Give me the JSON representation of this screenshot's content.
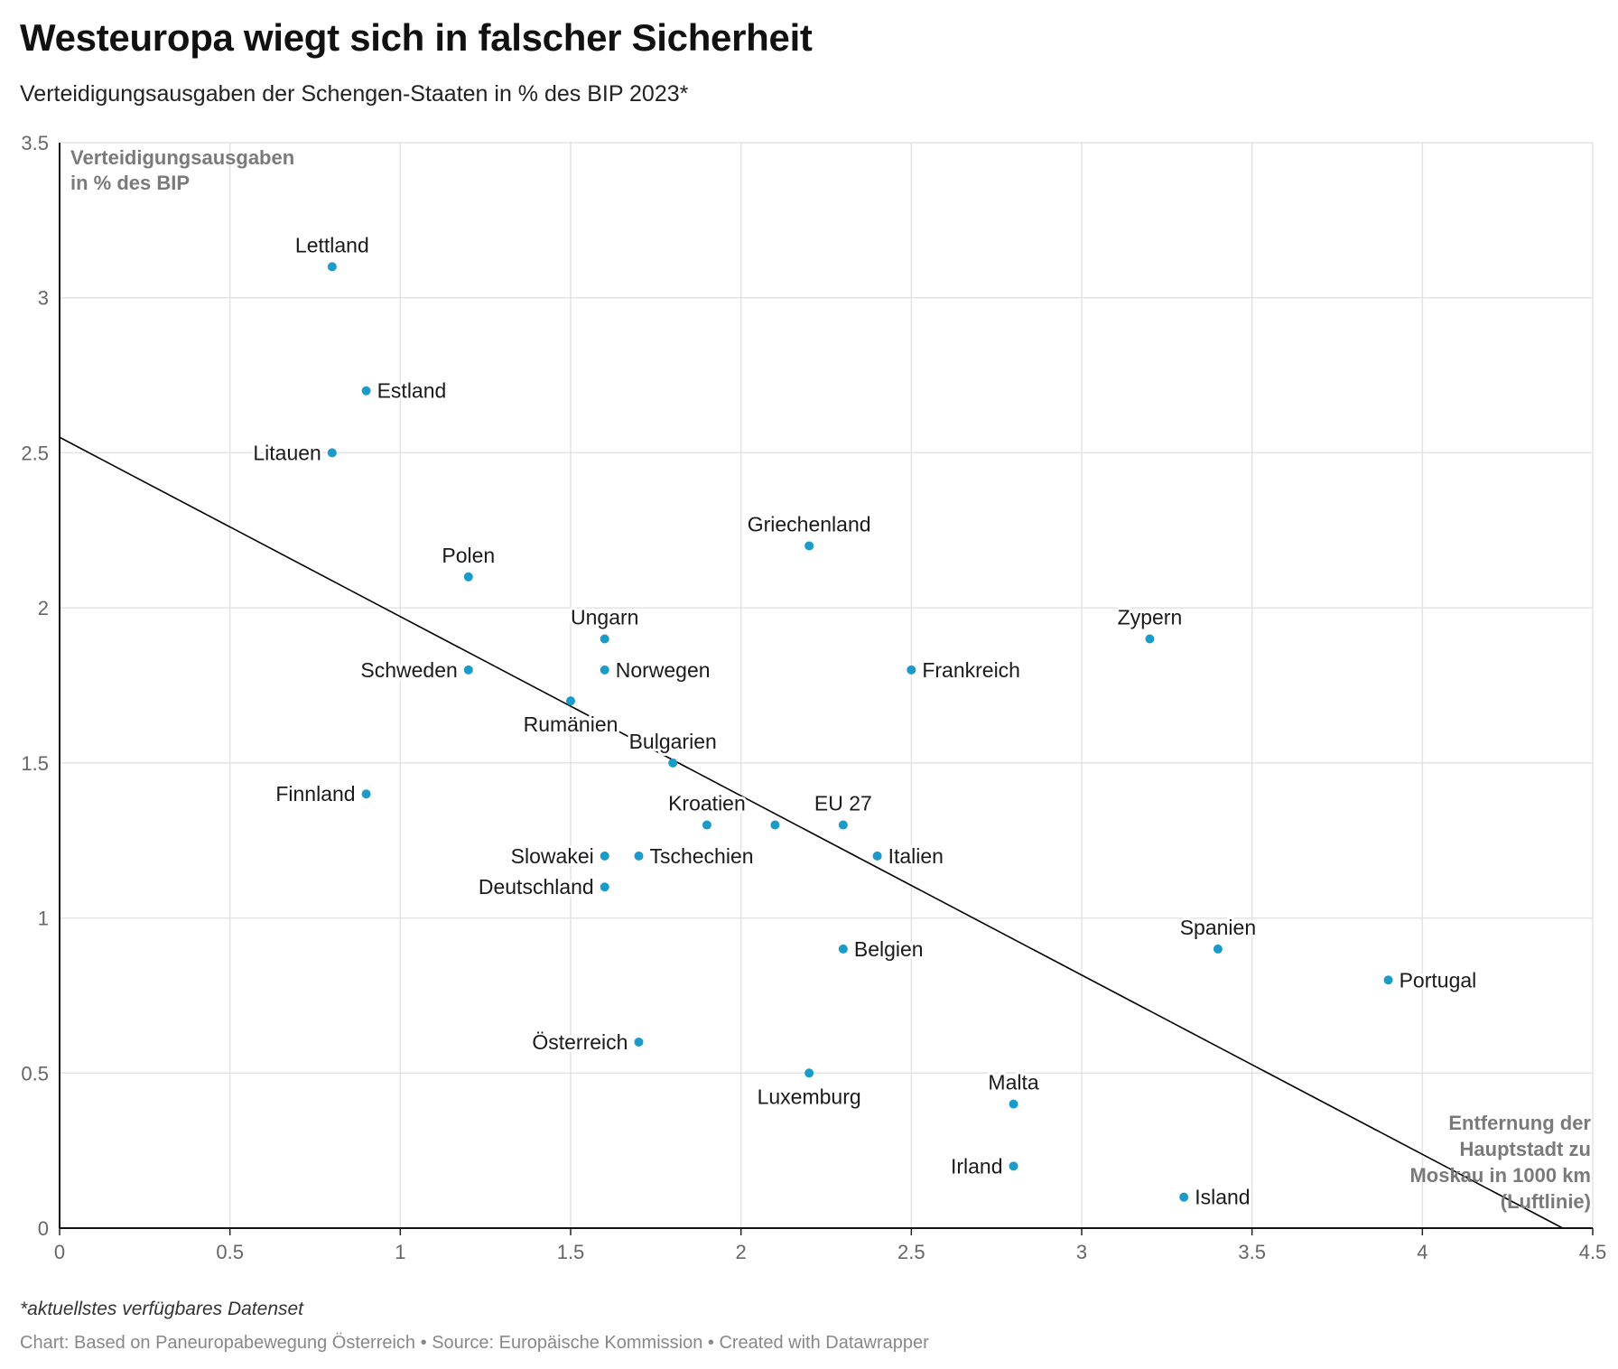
{
  "header": {
    "title": "Westeuropa wiegt sich in falscher Sicherheit",
    "subtitle": "Verteidigungsausgaben der Schengen-Staaten in % des BIP 2023*"
  },
  "footer": {
    "note": "*aktuellstes verfügbares Datenset",
    "credit_chart": "Chart: Based on Paneuropabewegung Österreich",
    "credit_source": "Source: Europäische Kommission",
    "credit_tool": "Created with Datawrapper",
    "separator": " • "
  },
  "colors": {
    "point": "#1a9bc9",
    "trend": "#000000",
    "grid": "#e3e3e3",
    "axis_label": "#7a7a7a"
  },
  "chart_data": {
    "type": "scatter",
    "title": "Westeuropa wiegt sich in falscher Sicherheit",
    "ylabel_lines": [
      "Verteidigungsausgaben",
      "in % des BIP"
    ],
    "xlabel_lines": [
      "Entfernung der",
      "Hauptstadt zu",
      "Moskau in 1000 km",
      "(Luftlinie)"
    ],
    "xlim": [
      0,
      4.5
    ],
    "ylim": [
      0,
      3.5
    ],
    "xticks": [
      0,
      0.5,
      1,
      1.5,
      2,
      2.5,
      3,
      3.5,
      4,
      4.5
    ],
    "xtick_labels": [
      "0",
      "0.5",
      "1",
      "1.5",
      "2",
      "2.5",
      "3",
      "3.5",
      "4",
      "4.5"
    ],
    "yticks": [
      0,
      0.5,
      1,
      1.5,
      2,
      2.5,
      3,
      3.5
    ],
    "ytick_labels": [
      "0",
      "0.5",
      "1",
      "1.5",
      "2",
      "2.5",
      "3",
      "3.5"
    ],
    "grid": true,
    "trendline": {
      "intercept": 2.55,
      "slope": -0.578
    },
    "points": [
      {
        "label": "Lettland",
        "x": 0.8,
        "y": 3.1,
        "pos": "top"
      },
      {
        "label": "Estland",
        "x": 0.9,
        "y": 2.7,
        "pos": "right"
      },
      {
        "label": "Litauen",
        "x": 0.8,
        "y": 2.5,
        "pos": "left"
      },
      {
        "label": "Polen",
        "x": 1.2,
        "y": 2.1,
        "pos": "top"
      },
      {
        "label": "Griechenland",
        "x": 2.2,
        "y": 2.2,
        "pos": "top"
      },
      {
        "label": "Ungarn",
        "x": 1.6,
        "y": 1.9,
        "pos": "top"
      },
      {
        "label": "Zypern",
        "x": 3.2,
        "y": 1.9,
        "pos": "top"
      },
      {
        "label": "Schweden",
        "x": 1.2,
        "y": 1.8,
        "pos": "left"
      },
      {
        "label": "Norwegen",
        "x": 1.6,
        "y": 1.8,
        "pos": "right"
      },
      {
        "label": "Frankreich",
        "x": 2.5,
        "y": 1.8,
        "pos": "right"
      },
      {
        "label": "Rumänien",
        "x": 1.5,
        "y": 1.7,
        "pos": "bottom"
      },
      {
        "label": "Bulgarien",
        "x": 1.8,
        "y": 1.5,
        "pos": "top"
      },
      {
        "label": "Finnland",
        "x": 0.9,
        "y": 1.4,
        "pos": "left"
      },
      {
        "label": "Kroatien",
        "x": 1.9,
        "y": 1.3,
        "pos": "top"
      },
      {
        "label": "",
        "x": 2.1,
        "y": 1.3,
        "pos": "none"
      },
      {
        "label": "EU 27",
        "x": 2.3,
        "y": 1.3,
        "pos": "top"
      },
      {
        "label": "Slowakei",
        "x": 1.6,
        "y": 1.2,
        "pos": "left"
      },
      {
        "label": "Tschechien",
        "x": 1.7,
        "y": 1.2,
        "pos": "right"
      },
      {
        "label": "Italien",
        "x": 2.4,
        "y": 1.2,
        "pos": "right"
      },
      {
        "label": "Deutschland",
        "x": 1.6,
        "y": 1.1,
        "pos": "left"
      },
      {
        "label": "Belgien",
        "x": 2.3,
        "y": 0.9,
        "pos": "right"
      },
      {
        "label": "Spanien",
        "x": 3.4,
        "y": 0.9,
        "pos": "top"
      },
      {
        "label": "Portugal",
        "x": 3.9,
        "y": 0.8,
        "pos": "right"
      },
      {
        "label": "Österreich",
        "x": 1.7,
        "y": 0.6,
        "pos": "left"
      },
      {
        "label": "Luxemburg",
        "x": 2.2,
        "y": 0.5,
        "pos": "bottom"
      },
      {
        "label": "Malta",
        "x": 2.8,
        "y": 0.4,
        "pos": "top"
      },
      {
        "label": "Irland",
        "x": 2.8,
        "y": 0.2,
        "pos": "left"
      },
      {
        "label": "Island",
        "x": 3.3,
        "y": 0.1,
        "pos": "right"
      }
    ]
  }
}
